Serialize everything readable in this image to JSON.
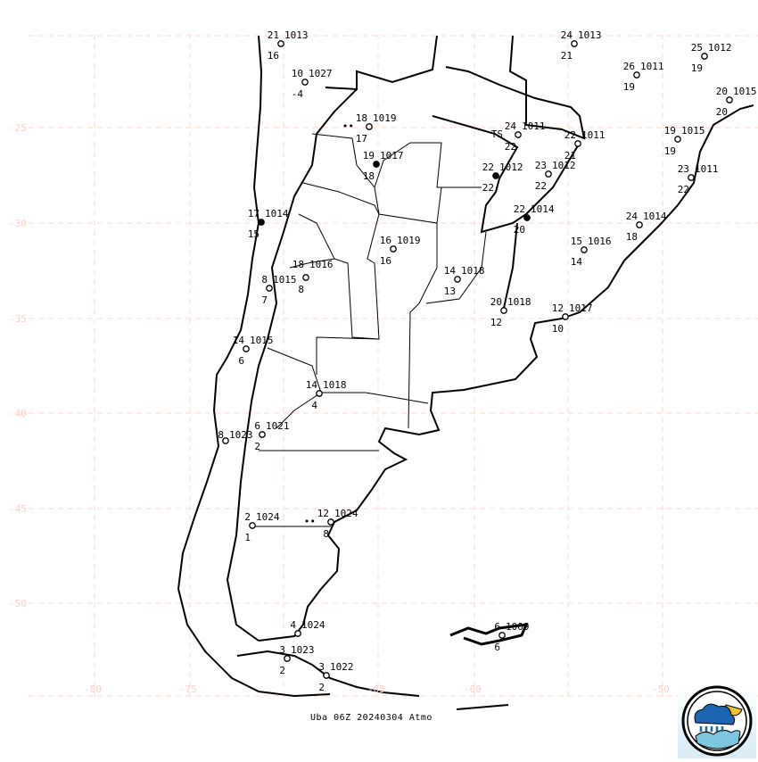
{
  "caption": "Uba 06Z 20240304 Atmo",
  "colors": {
    "grid": "#ffd9d0",
    "map_lines": "#000000",
    "logo_blue": "#1b64b0",
    "logo_sea": "#7cc6e0",
    "logo_sun": "#f2c230"
  },
  "axes": {
    "lat_labels": [
      "-25",
      "-30",
      "-35",
      "-40",
      "-45",
      "-50"
    ],
    "lon_labels": [
      "-80",
      "-75",
      "-65",
      "-60",
      "-50"
    ]
  },
  "logo": {
    "icon": "weather-cloud-rain-sun-sea-logo"
  },
  "stations": [
    {
      "temp": "21",
      "pressure": "1013",
      "dewpoint": "16"
    },
    {
      "temp": "10",
      "pressure": "1027",
      "dewpoint": "-4"
    },
    {
      "temp": "18",
      "pressure": "1019",
      "dewpoint": "17",
      "weather": "••"
    },
    {
      "temp": "19",
      "pressure": "1017",
      "dewpoint": "18"
    },
    {
      "temp": "17",
      "pressure": "1014",
      "dewpoint": "15"
    },
    {
      "temp": "16",
      "pressure": "1019",
      "dewpoint": "16"
    },
    {
      "temp": "18",
      "pressure": "1016",
      "dewpoint": "8"
    },
    {
      "temp": "8",
      "pressure": "1015",
      "dewpoint": "7"
    },
    {
      "temp": "14",
      "pressure": "1018",
      "dewpoint": "13"
    },
    {
      "temp": "20",
      "pressure": "1018",
      "dewpoint": "12"
    },
    {
      "temp": "12",
      "pressure": "1017",
      "dewpoint": "10"
    },
    {
      "temp": "15",
      "pressure": "1016",
      "dewpoint": "14"
    },
    {
      "temp": "24",
      "pressure": "1014",
      "dewpoint": "18"
    },
    {
      "temp": "22",
      "pressure": "1014",
      "dewpoint": "20"
    },
    {
      "temp": "22",
      "pressure": "1012",
      "dewpoint": "22"
    },
    {
      "temp": "23",
      "pressure": "1012",
      "dewpoint": "22"
    },
    {
      "temp": "24",
      "pressure": "1011",
      "dewpoint": "22",
      "weather": "TS"
    },
    {
      "temp": "22",
      "pressure": "1011",
      "dewpoint": "21"
    },
    {
      "temp": "24",
      "pressure": "1013",
      "dewpoint": "21"
    },
    {
      "temp": "26",
      "pressure": "1011",
      "dewpoint": "19"
    },
    {
      "temp": "25",
      "pressure": "1012",
      "dewpoint": "19"
    },
    {
      "temp": "20",
      "pressure": "1015",
      "dewpoint": "20"
    },
    {
      "temp": "19",
      "pressure": "1015",
      "dewpoint": "19"
    },
    {
      "temp": "23",
      "pressure": "1011",
      "dewpoint": "22"
    },
    {
      "temp": "14",
      "pressure": "1015",
      "dewpoint": "6"
    },
    {
      "temp": "14",
      "pressure": "1018",
      "dewpoint": "4"
    },
    {
      "temp": "6",
      "pressure": "1021",
      "dewpoint": "2"
    },
    {
      "temp": "8",
      "pressure": "1023",
      "dewpoint": ""
    },
    {
      "temp": "2",
      "pressure": "1024",
      "dewpoint": "1"
    },
    {
      "temp": "12",
      "pressure": "1024",
      "dewpoint": "8",
      "weather": "••"
    },
    {
      "temp": "4",
      "pressure": "1024",
      "dewpoint": ""
    },
    {
      "temp": "3",
      "pressure": "1023",
      "dewpoint": "2"
    },
    {
      "temp": "3",
      "pressure": "1022",
      "dewpoint": "2"
    },
    {
      "temp": "6",
      "pressure": "1009",
      "dewpoint": "6"
    }
  ]
}
